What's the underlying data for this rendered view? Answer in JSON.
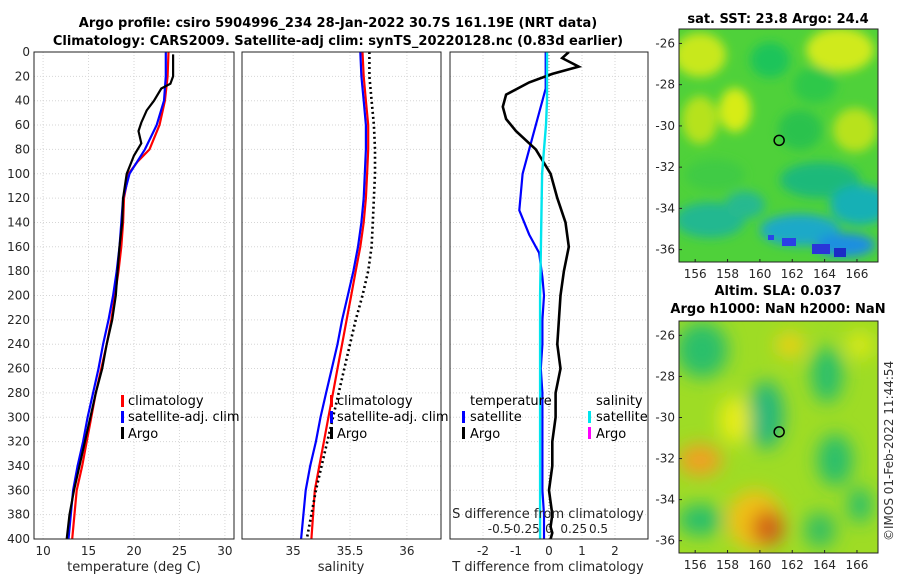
{
  "header": {
    "title_line1": "Argo profile: csiro 5904996_234 28-Jan-2022 30.7S 161.19E (NRT data)",
    "title_line2": "Climatology: CARS2009. Satellite-adj clim: synTS_20220128.nc (0.83d earlier)"
  },
  "colors": {
    "climatology": "#ff0000",
    "satellite": "#0000ff",
    "argo": "#000000",
    "salinity_satellite": "#00e5ee",
    "salinity_argo": "#ff00ff",
    "zero_line": "#888888"
  },
  "chart_data": [
    {
      "type": "line",
      "panel": "temperature-profile",
      "xlabel": "temperature (deg C)",
      "xlim": [
        9,
        31
      ],
      "xticks": [
        "10",
        "15",
        "20",
        "25",
        "30"
      ],
      "ylim": [
        0,
        400
      ],
      "yticks": [
        "0",
        "20",
        "40",
        "60",
        "80",
        "100",
        "120",
        "140",
        "160",
        "180",
        "200",
        "220",
        "240",
        "260",
        "280",
        "300",
        "320",
        "340",
        "360",
        "380",
        "400"
      ],
      "grid": true,
      "legend": [
        "climatology",
        "satellite-adj. clim",
        "Argo"
      ],
      "series": [
        {
          "name": "climatology",
          "x": [
            23.8,
            23.7,
            23.4,
            22.8,
            21.7,
            20.4,
            19.4,
            18.9,
            18.8,
            18.6,
            18.3,
            17.9,
            17.5,
            17.0,
            16.4,
            15.8,
            15.3,
            14.8,
            14.3,
            13.7,
            13.2
          ],
          "y": [
            0,
            20,
            40,
            60,
            80,
            90,
            100,
            120,
            140,
            160,
            180,
            200,
            220,
            240,
            260,
            280,
            300,
            320,
            340,
            360,
            400
          ]
        },
        {
          "name": "satellite",
          "x": [
            23.5,
            23.5,
            23.3,
            22.5,
            21.2,
            19.5,
            18.8,
            18.6,
            18.4,
            18.1,
            17.7,
            17.2,
            16.6,
            16.1,
            15.5,
            14.9,
            14.4,
            13.8,
            13.3,
            12.8
          ],
          "y": [
            0,
            20,
            40,
            60,
            80,
            100,
            120,
            140,
            160,
            180,
            200,
            220,
            240,
            260,
            280,
            300,
            320,
            340,
            360,
            400
          ]
        },
        {
          "name": "Argo",
          "x": [
            24.3,
            24.3,
            24.0,
            23.0,
            22.2,
            21.4,
            20.8,
            20.5,
            20.8,
            20.0,
            19.2,
            18.8,
            18.7,
            18.4,
            18.2,
            18.0,
            17.6,
            17.0,
            16.5,
            15.8,
            15.2,
            14.6,
            14.0,
            13.4,
            12.9,
            12.6
          ],
          "y": [
            2,
            20,
            26,
            30,
            40,
            48,
            58,
            65,
            75,
            85,
            100,
            120,
            140,
            160,
            180,
            200,
            220,
            240,
            260,
            280,
            300,
            320,
            340,
            360,
            380,
            400
          ]
        }
      ]
    },
    {
      "type": "line",
      "panel": "salinity-profile",
      "xlabel": "salinity",
      "xlim": [
        34.55,
        36.3
      ],
      "xticks": [
        "35",
        "35.5",
        "36"
      ],
      "ylim": [
        0,
        400
      ],
      "grid": true,
      "legend": [
        "climatology",
        "satellite-adj. clim",
        "Argo"
      ],
      "series": [
        {
          "name": "climatology",
          "x": [
            35.61,
            35.62,
            35.64,
            35.66,
            35.66,
            35.65,
            35.64,
            35.62,
            35.59,
            35.55,
            35.51,
            35.47,
            35.43,
            35.39,
            35.35,
            35.31,
            35.27,
            35.23,
            35.19,
            35.16
          ],
          "y": [
            0,
            20,
            40,
            60,
            80,
            100,
            120,
            140,
            160,
            180,
            200,
            220,
            240,
            260,
            280,
            300,
            320,
            340,
            360,
            400
          ]
        },
        {
          "name": "satellite",
          "x": [
            35.59,
            35.6,
            35.62,
            35.64,
            35.64,
            35.63,
            35.62,
            35.6,
            35.57,
            35.53,
            35.48,
            35.43,
            35.39,
            35.34,
            35.29,
            35.24,
            35.2,
            35.15,
            35.11,
            35.07
          ],
          "y": [
            0,
            20,
            40,
            60,
            80,
            100,
            120,
            140,
            160,
            180,
            200,
            220,
            240,
            260,
            280,
            300,
            320,
            340,
            360,
            400
          ]
        },
        {
          "name": "Argo",
          "x": [
            35.67,
            35.67,
            35.69,
            35.71,
            35.72,
            35.72,
            35.71,
            35.7,
            35.69,
            35.66,
            35.61,
            35.55,
            35.5,
            35.45,
            35.4,
            35.35,
            35.3,
            35.25,
            35.2,
            35.12
          ],
          "y": [
            0,
            20,
            40,
            60,
            80,
            100,
            120,
            140,
            160,
            180,
            200,
            220,
            240,
            260,
            280,
            300,
            320,
            340,
            360,
            400
          ]
        }
      ]
    },
    {
      "type": "line",
      "panel": "difference-profile",
      "xlabel": "T difference from climatology",
      "xlim": [
        -3,
        3
      ],
      "xticks": [
        "-2",
        "-1",
        "0",
        "1",
        "2"
      ],
      "top_axis_label": "S difference from climatology",
      "top_ticks": [
        "-0.5",
        "-0.25",
        "0",
        "0.25",
        "0.5"
      ],
      "ylim": [
        0,
        400
      ],
      "grid": true,
      "legend_temperature": {
        "title": "temperature",
        "items": [
          "satellite",
          "Argo"
        ]
      },
      "legend_salinity": {
        "title": "salinity",
        "items": [
          "satellite",
          "Argo"
        ]
      },
      "series": [
        {
          "name": "temperature satellite",
          "x": [
            -0.1,
            -0.1,
            -0.1,
            -0.3,
            -0.5,
            -0.8,
            -0.9,
            -0.6,
            -0.3,
            -0.2,
            -0.15,
            -0.2,
            -0.2,
            -0.25,
            -0.2,
            -0.2,
            -0.2,
            -0.2,
            -0.2,
            -0.15,
            -0.15
          ],
          "y": [
            0,
            10,
            30,
            50,
            70,
            100,
            130,
            150,
            165,
            185,
            200,
            220,
            240,
            260,
            280,
            300,
            320,
            340,
            360,
            380,
            400
          ]
        },
        {
          "name": "temperature Argo",
          "x": [
            0.6,
            0.4,
            0.9,
            0.1,
            -0.6,
            -1.3,
            -1.4,
            -1.3,
            -1.0,
            -0.4,
            0.05,
            0.25,
            0.5,
            0.6,
            0.45,
            0.35,
            0.3,
            0.25,
            0.35,
            0.2,
            0.2,
            0.1,
            0.1,
            0.0,
            0.1,
            0.05,
            0.1,
            0.05
          ],
          "y": [
            0,
            5,
            12,
            18,
            25,
            35,
            45,
            55,
            65,
            80,
            100,
            120,
            140,
            160,
            180,
            200,
            220,
            240,
            260,
            280,
            300,
            320,
            340,
            360,
            380,
            390,
            395,
            400
          ]
        },
        {
          "name": "salinity satellite",
          "x": [
            -0.02,
            -0.02,
            -0.02,
            -0.03,
            -0.05,
            -0.07,
            -0.08,
            -0.09,
            -0.09,
            -0.09,
            -0.09
          ],
          "y": [
            0,
            20,
            40,
            60,
            80,
            100,
            150,
            200,
            250,
            300,
            400
          ]
        }
      ]
    },
    {
      "type": "heatmap",
      "panel": "sst-map",
      "title": "sat. SST: 23.8 Argo: 24.4",
      "xticks": [
        "156",
        "158",
        "160",
        "162",
        "164",
        "166"
      ],
      "yticks": [
        "-26",
        "-28",
        "-30",
        "-32",
        "-34",
        "-36"
      ],
      "xlim": [
        155,
        167.3
      ],
      "ylim": [
        -36.6,
        -25.3
      ],
      "marker": {
        "lon": 161.19,
        "lat": -30.7
      }
    },
    {
      "type": "heatmap",
      "panel": "sla-map",
      "title_line1": "Altim. SLA: 0.037",
      "title_line2": "Argo h1000: NaN h2000: NaN",
      "xticks": [
        "156",
        "158",
        "160",
        "162",
        "164",
        "166"
      ],
      "yticks": [
        "-26",
        "-28",
        "-30",
        "-32",
        "-34",
        "-36"
      ],
      "xlim": [
        155,
        167.3
      ],
      "ylim": [
        -36.6,
        -25.3
      ],
      "marker": {
        "lon": 161.19,
        "lat": -30.7
      }
    }
  ],
  "watermark": "©IMOS 01-Feb-2022 11:44:54"
}
